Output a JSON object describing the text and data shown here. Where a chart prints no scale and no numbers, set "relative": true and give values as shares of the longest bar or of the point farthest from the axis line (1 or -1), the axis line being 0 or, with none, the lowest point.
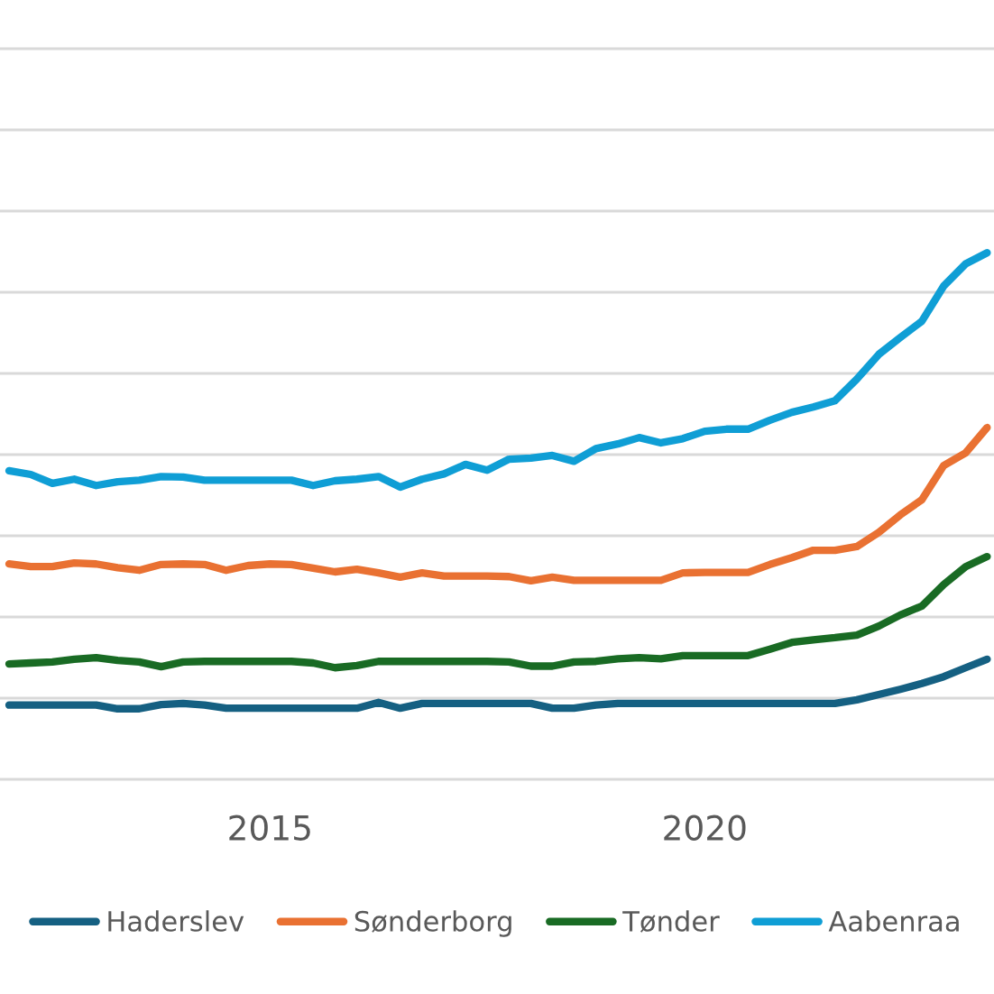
{
  "chart_data": {
    "type": "line",
    "relative": true,
    "grid": "y",
    "legend": "bottom",
    "x": [
      "2012-01",
      "2012-04",
      "2012-07",
      "2012-10",
      "2013-01",
      "2013-04",
      "2013-07",
      "2013-10",
      "2014-01",
      "2014-04",
      "2014-07",
      "2014-10",
      "2015-01",
      "2015-04",
      "2015-07",
      "2015-10",
      "2016-01",
      "2016-04",
      "2016-07",
      "2016-10",
      "2017-01",
      "2017-04",
      "2017-07",
      "2017-10",
      "2018-01",
      "2018-04",
      "2018-07",
      "2018-10",
      "2019-01",
      "2019-04",
      "2019-07",
      "2019-10",
      "2020-01",
      "2020-04",
      "2020-07",
      "2020-10",
      "2021-01",
      "2021-04",
      "2021-07",
      "2021-10",
      "2022-01",
      "2022-04",
      "2022-07",
      "2022-10",
      "2023-01",
      "2023-04"
    ],
    "xlim": [
      "2011-11-24",
      "2023-04-30"
    ],
    "xticks": [
      "2015",
      "2020"
    ],
    "series": [
      {
        "name": "Haderslev",
        "color": "#156082",
        "values": [
          0.141,
          0.141,
          0.141,
          0.141,
          0.141,
          0.134,
          0.134,
          0.142,
          0.144,
          0.141,
          0.135,
          0.135,
          0.135,
          0.135,
          0.135,
          0.135,
          0.135,
          0.146,
          0.135,
          0.144,
          0.144,
          0.144,
          0.144,
          0.144,
          0.144,
          0.135,
          0.135,
          0.141,
          0.144,
          0.144,
          0.144,
          0.144,
          0.144,
          0.144,
          0.144,
          0.144,
          0.144,
          0.144,
          0.144,
          0.151,
          0.161,
          0.171,
          0.182,
          0.195,
          0.212,
          0.228
        ]
      },
      {
        "name": "Sønderborg",
        "color": "#e97132",
        "values": [
          0.409,
          0.404,
          0.404,
          0.411,
          0.409,
          0.402,
          0.397,
          0.408,
          0.409,
          0.408,
          0.397,
          0.406,
          0.409,
          0.408,
          0.401,
          0.394,
          0.399,
          0.392,
          0.384,
          0.392,
          0.386,
          0.386,
          0.386,
          0.385,
          0.377,
          0.384,
          0.378,
          0.378,
          0.378,
          0.378,
          0.378,
          0.392,
          0.393,
          0.393,
          0.393,
          0.408,
          0.421,
          0.435,
          0.435,
          0.442,
          0.469,
          0.502,
          0.531,
          0.596,
          0.62,
          0.668
        ]
      },
      {
        "name": "Tønder",
        "color": "#196b24",
        "values": [
          0.219,
          0.221,
          0.223,
          0.228,
          0.231,
          0.226,
          0.223,
          0.214,
          0.223,
          0.224,
          0.224,
          0.224,
          0.224,
          0.224,
          0.221,
          0.212,
          0.216,
          0.224,
          0.224,
          0.224,
          0.224,
          0.224,
          0.224,
          0.223,
          0.215,
          0.215,
          0.223,
          0.224,
          0.229,
          0.231,
          0.229,
          0.235,
          0.235,
          0.235,
          0.235,
          0.247,
          0.26,
          0.265,
          0.269,
          0.274,
          0.291,
          0.312,
          0.329,
          0.37,
          0.404,
          0.423
        ]
      },
      {
        "name": "Aabenraa",
        "color": "#0f9ed5",
        "values": [
          0.586,
          0.579,
          0.562,
          0.57,
          0.558,
          0.565,
          0.568,
          0.575,
          0.574,
          0.568,
          0.568,
          0.568,
          0.568,
          0.568,
          0.558,
          0.567,
          0.57,
          0.575,
          0.555,
          0.57,
          0.58,
          0.598,
          0.587,
          0.608,
          0.61,
          0.615,
          0.604,
          0.628,
          0.637,
          0.649,
          0.639,
          0.647,
          0.661,
          0.665,
          0.665,
          0.682,
          0.697,
          0.707,
          0.719,
          0.76,
          0.807,
          0.839,
          0.87,
          0.937,
          0.979,
          1
        ]
      }
    ]
  }
}
